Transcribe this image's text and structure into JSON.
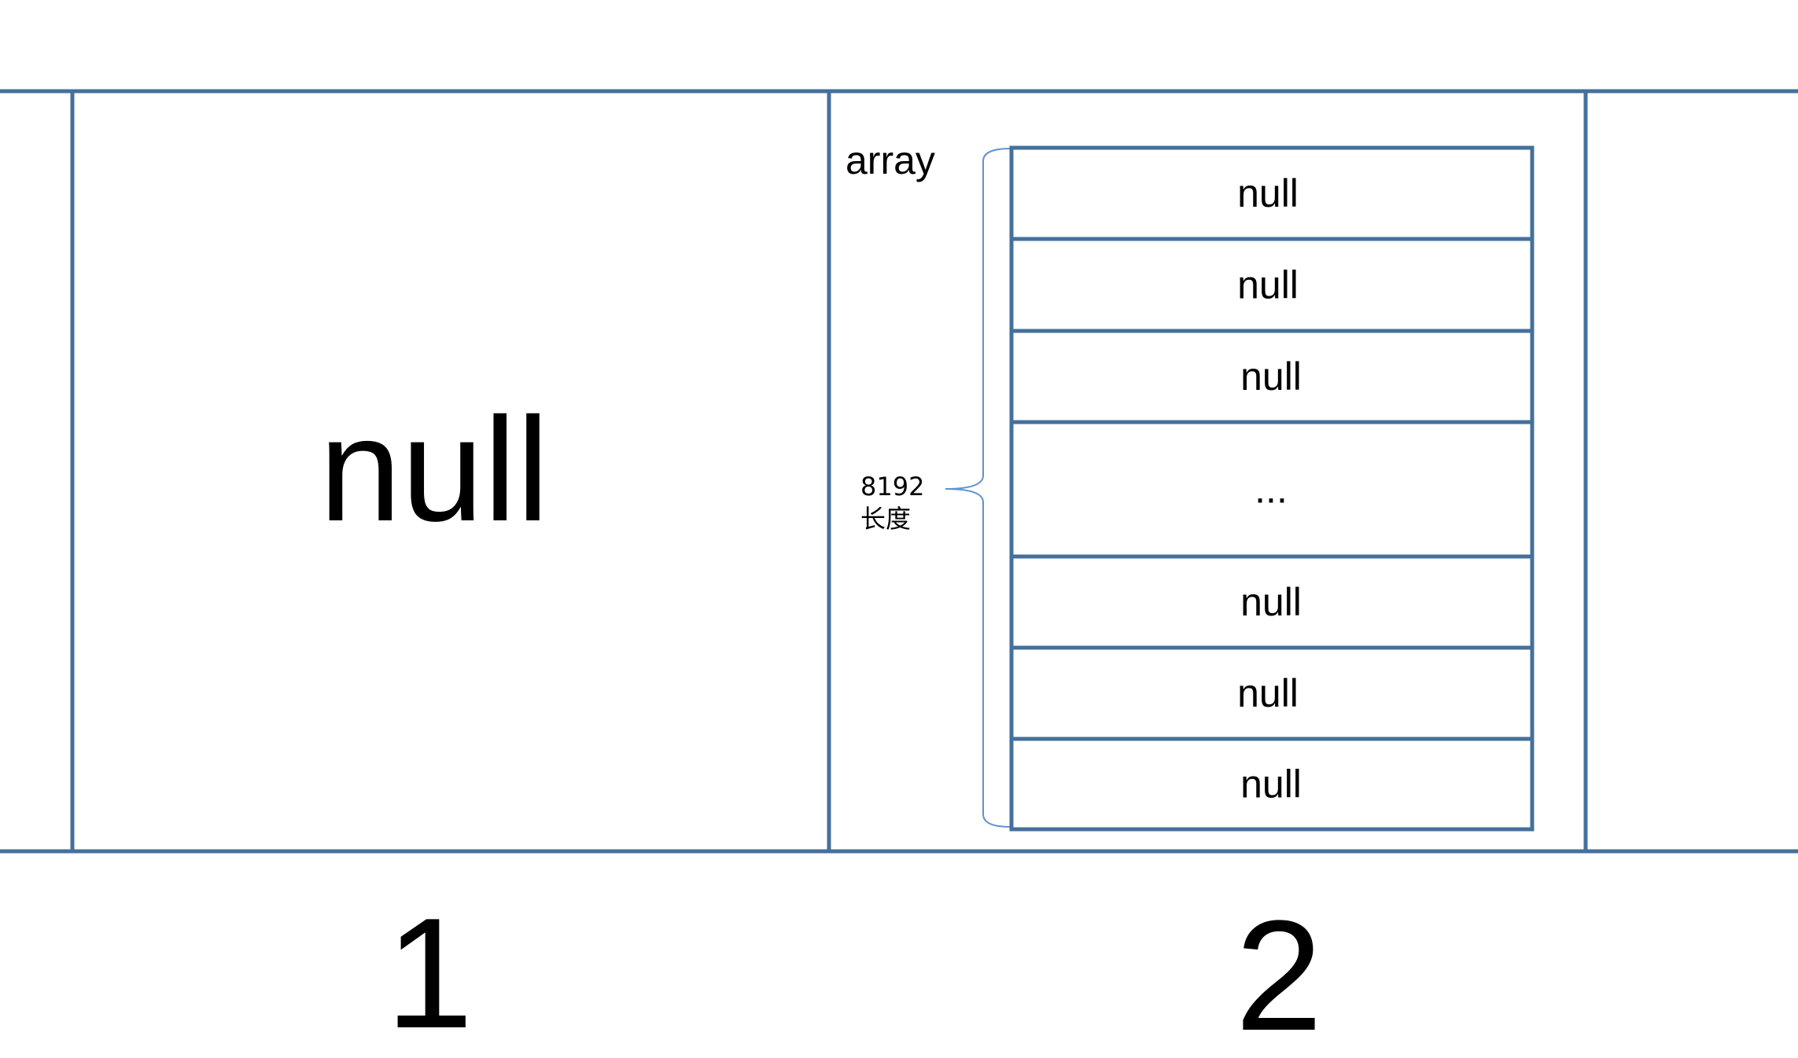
{
  "colors": {
    "frame": "#44709b",
    "brace": "#5b93cf",
    "text": "#000000",
    "background": "#ffffff"
  },
  "slots": [
    {
      "index_label": "1",
      "content": "null"
    },
    {
      "index_label": "2",
      "array_label": "array"
    }
  ],
  "array": {
    "length_value": "8192",
    "length_label": "长度",
    "cells": [
      "null",
      "null",
      "null",
      "...",
      "null",
      "null",
      "null"
    ]
  }
}
